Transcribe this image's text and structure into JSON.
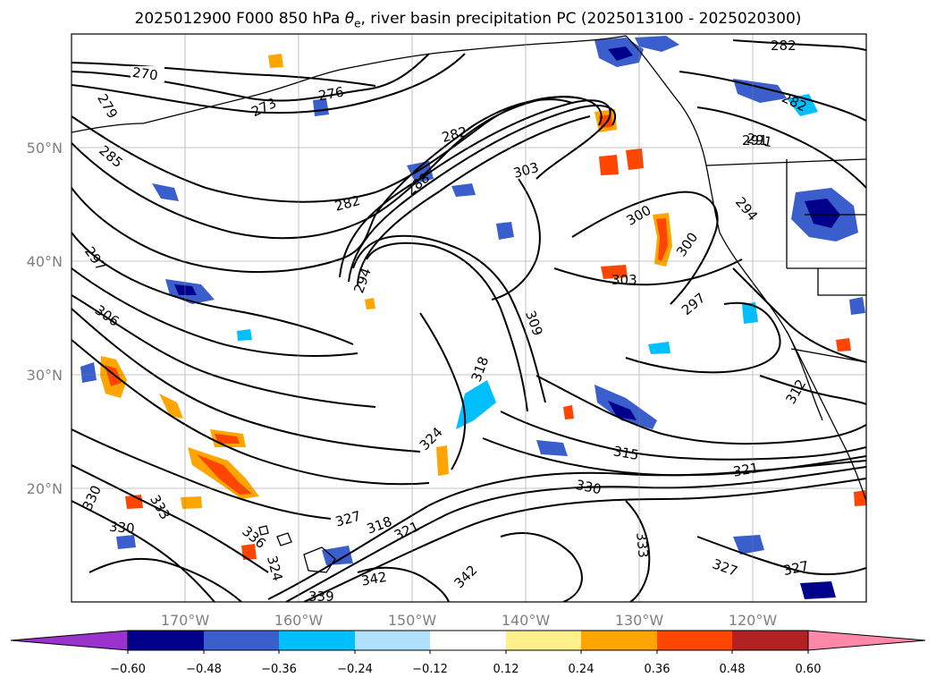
{
  "title_main": "2025012900 F000 850 hPa ",
  "title_symbol": "θ",
  "title_sub": "e",
  "title_rest": ", river basin precipitation PC (2025013100 - 2025020300)",
  "lat_labels": [
    "50°N",
    "40°N",
    "30°N",
    "20°N"
  ],
  "lon_labels": [
    "170°W",
    "160°W",
    "150°W",
    "140°W",
    "130°W",
    "120°W"
  ],
  "contour_labels": [
    "270",
    "273",
    "276",
    "279",
    "282",
    "282",
    "282",
    "285",
    "288",
    "291",
    "294",
    "294",
    "297",
    "297",
    "300",
    "300",
    "303",
    "303",
    "306",
    "309",
    "312",
    "315",
    "318",
    "321",
    "321",
    "324",
    "327",
    "327",
    "330",
    "330",
    "330",
    "333",
    "333",
    "336",
    "339",
    "342",
    "342",
    "318",
    "327",
    "324",
    "291",
    "282"
  ],
  "colorbar": {
    "ticks": [
      "−0.60",
      "−0.48",
      "−0.36",
      "−0.24",
      "−0.12",
      "0.12",
      "0.24",
      "0.36",
      "0.48",
      "0.60"
    ],
    "colors": [
      "#9a32cd",
      "#00008b",
      "#3a5fcd",
      "#00bfff",
      "#b0e2ff",
      "#ffffff",
      "#fff08c",
      "#ffa500",
      "#ff4500",
      "#b22222",
      "#ff88a8"
    ]
  },
  "field_colors": {
    "neg_strong": "#00008b",
    "neg_mid": "#3a5fcd",
    "neg_light": "#00bfff",
    "pos_light": "#ffa500",
    "pos_strong": "#ff4500"
  }
}
